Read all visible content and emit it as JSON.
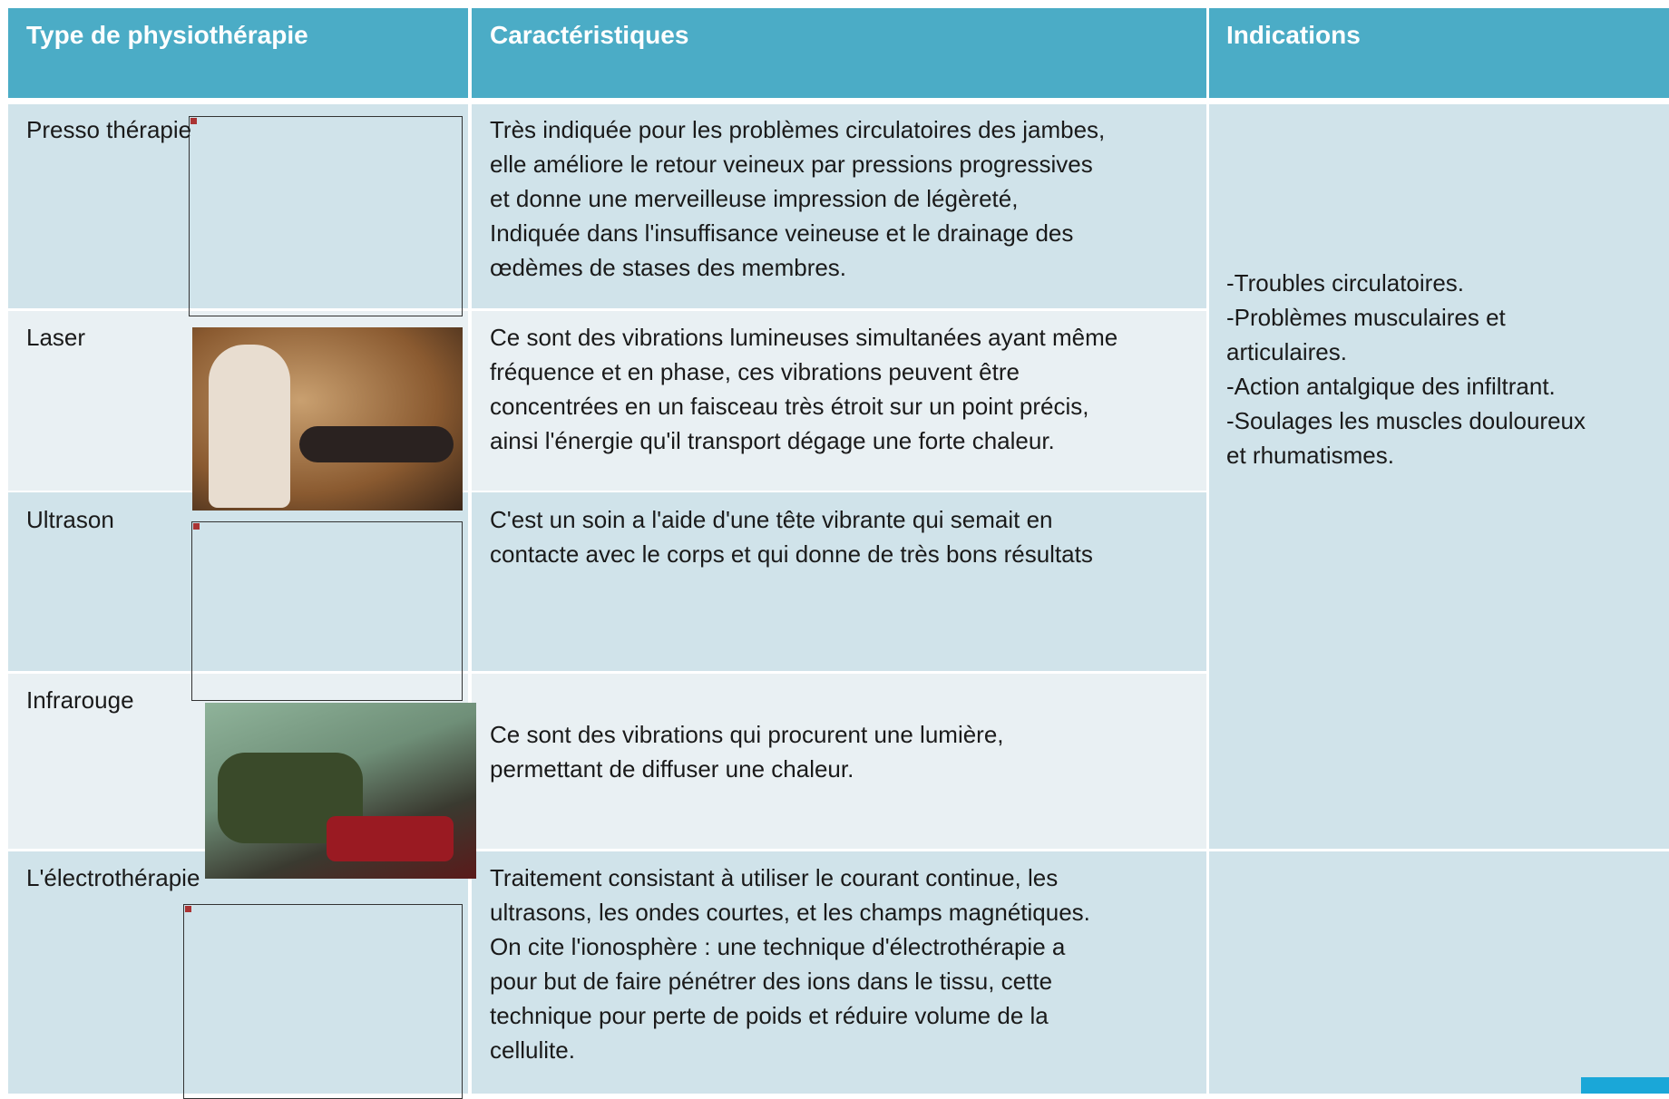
{
  "header": {
    "columns": [
      "Type de physiothérapie",
      "Caractéristiques",
      "Indications"
    ]
  },
  "rows": [
    {
      "type": "Presso thérapie",
      "characteristics": [
        "Très indiquée pour les problèmes circulatoires des jambes,",
        "elle améliore le retour veineux par pressions progressives",
        "et donne une merveilleuse impression de légèreté,",
        "Indiquée dans l'insuffisance veineuse et le drainage des",
        "œdèmes de stases des membres."
      ]
    },
    {
      "type": "Laser",
      "characteristics": [
        "Ce sont des vibrations lumineuses simultanées ayant même",
        "fréquence et en phase, ces vibrations peuvent être",
        "concentrées en un faisceau très étroit sur un point précis,",
        "ainsi l'énergie qu'il transport dégage une forte chaleur."
      ]
    },
    {
      "type": "Ultrason",
      "characteristics": [
        "C'est un soin a l'aide d'une tête vibrante qui semait en",
        "contacte avec le corps et qui donne de très bons résultats"
      ]
    },
    {
      "type": "Infrarouge",
      "characteristics": [
        "Ce sont des vibrations qui procurent une lumière,",
        "permettant de diffuser une chaleur."
      ]
    },
    {
      "type": "L'électrothérapie",
      "characteristics": [
        "Traitement consistant à utiliser le courant continue, les",
        "ultrasons, les ondes courtes, et les champs magnétiques.",
        "On cite l'ionosphère : une technique d'électrothérapie a",
        "pour but de faire pénétrer des ions dans le tissu, cette",
        "technique pour perte de poids et réduire volume de la",
        "cellulite."
      ]
    }
  ],
  "indications": [
    "-Troubles circulatoires.",
    "-Problèmes musculaires et",
    "articulaires.",
    "-Action antalgique des infiltrant.",
    "-Soulages les muscles douloureux",
    "et rhumatismes."
  ]
}
